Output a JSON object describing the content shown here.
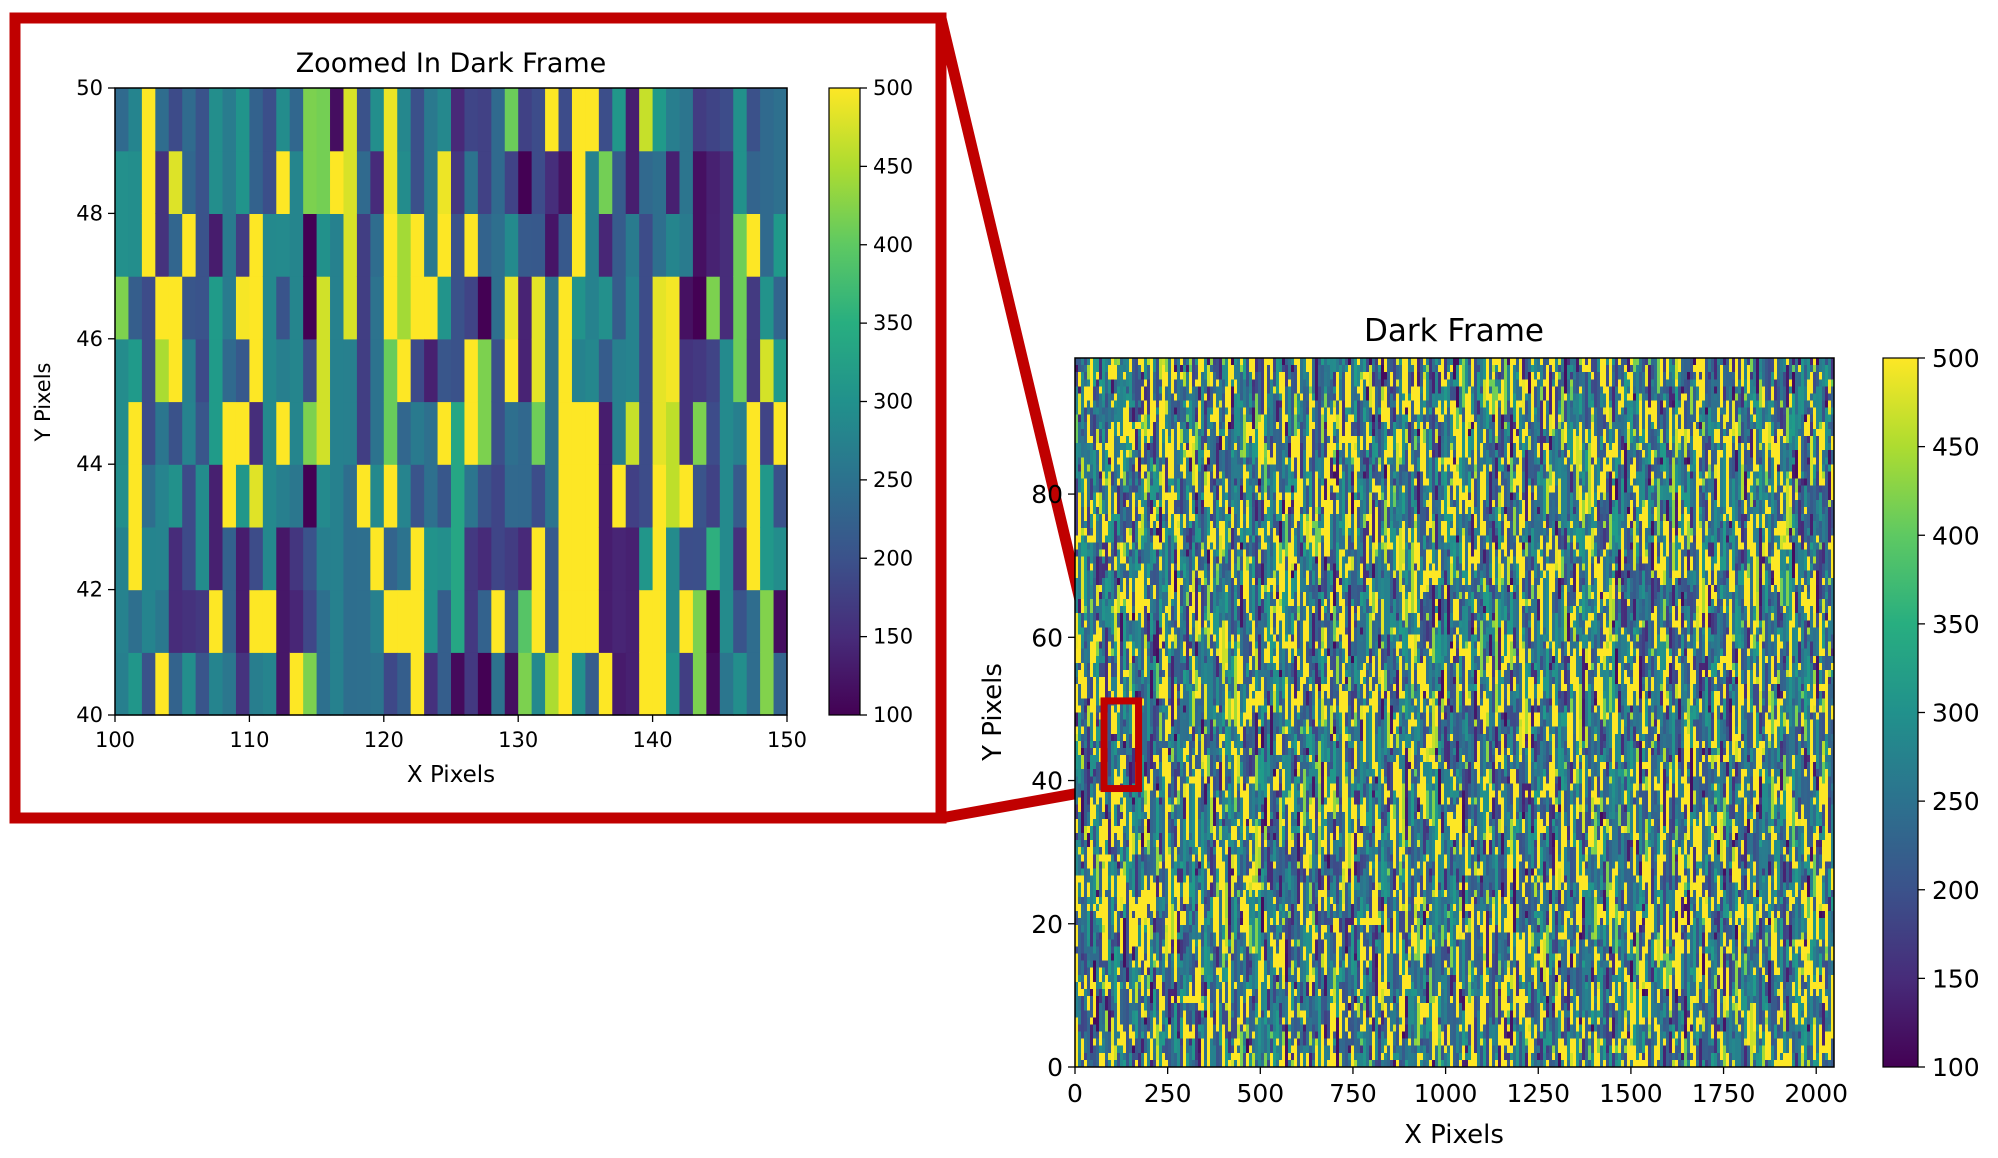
{
  "chart_data": [
    {
      "id": "zoomed",
      "type": "heatmap",
      "title": "Zoomed In Dark Frame",
      "xlabel": "X Pixels",
      "ylabel": "Y Pixels",
      "xlim": [
        100,
        150
      ],
      "ylim": [
        40,
        50
      ],
      "xticks": [
        100,
        110,
        120,
        130,
        140,
        150
      ],
      "yticks": [
        40,
        42,
        44,
        46,
        48,
        50
      ],
      "colorbar": {
        "min": 100,
        "max": 500,
        "ticks": [
          100,
          150,
          200,
          250,
          300,
          350,
          400,
          450,
          500
        ],
        "colormap": "viridis"
      }
    },
    {
      "id": "full",
      "type": "heatmap",
      "title": "Dark Frame",
      "xlabel": "X Pixels",
      "ylabel": "Y Pixels",
      "xlim": [
        0,
        2048
      ],
      "ylim": [
        0,
        99
      ],
      "xticks": [
        0,
        250,
        500,
        750,
        1000,
        1250,
        1500,
        1750,
        2000
      ],
      "yticks": [
        0,
        20,
        40,
        60,
        80
      ],
      "colorbar": {
        "min": 100,
        "max": 500,
        "ticks": [
          100,
          150,
          200,
          250,
          300,
          350,
          400,
          450,
          500
        ],
        "colormap": "viridis"
      },
      "highlight": {
        "x": [
          100,
          150
        ],
        "y": [
          40,
          50
        ],
        "color": "#c00000"
      }
    }
  ],
  "colors": {
    "highlight": "#c00000"
  }
}
